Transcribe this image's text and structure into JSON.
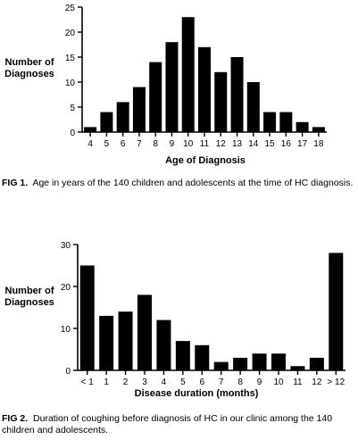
{
  "chart_data": [
    {
      "type": "bar",
      "ylabel": "Number of\nDiagnoses",
      "xlabel": "Age of Diagnosis",
      "categories": [
        "4",
        "5",
        "6",
        "7",
        "8",
        "9",
        "10",
        "11",
        "12",
        "13",
        "14",
        "15",
        "16",
        "17",
        "18"
      ],
      "values": [
        1,
        4,
        6,
        9,
        14,
        18,
        23,
        17,
        12,
        15,
        10,
        4,
        4,
        2,
        1
      ],
      "ylim": [
        0,
        25
      ],
      "yticks": [
        0,
        5,
        10,
        15,
        20,
        25
      ],
      "grid": false,
      "bar_color": "#000000",
      "caption_label": "FIG 1.",
      "caption_text": "Age in years of the 140 children and adolescents at the time of HC diagnosis."
    },
    {
      "type": "bar",
      "ylabel": "Number of\nDiagnoses",
      "xlabel": "Disease duration (months)",
      "categories": [
        "< 1",
        "1",
        "2",
        "3",
        "4",
        "5",
        "6",
        "7",
        "8",
        "9",
        "10",
        "11",
        "12",
        "> 12"
      ],
      "values": [
        25,
        13,
        14,
        18,
        12,
        7,
        6,
        2,
        3,
        4,
        4,
        1,
        3,
        28
      ],
      "ylim": [
        0,
        30
      ],
      "yticks": [
        0,
        10,
        20,
        30
      ],
      "grid": false,
      "bar_color": "#000000",
      "caption_label": "FIG 2.",
      "caption_text": "Duration of coughing before diagnosis of HC in our clinic among the 140 children and adolescents."
    }
  ]
}
